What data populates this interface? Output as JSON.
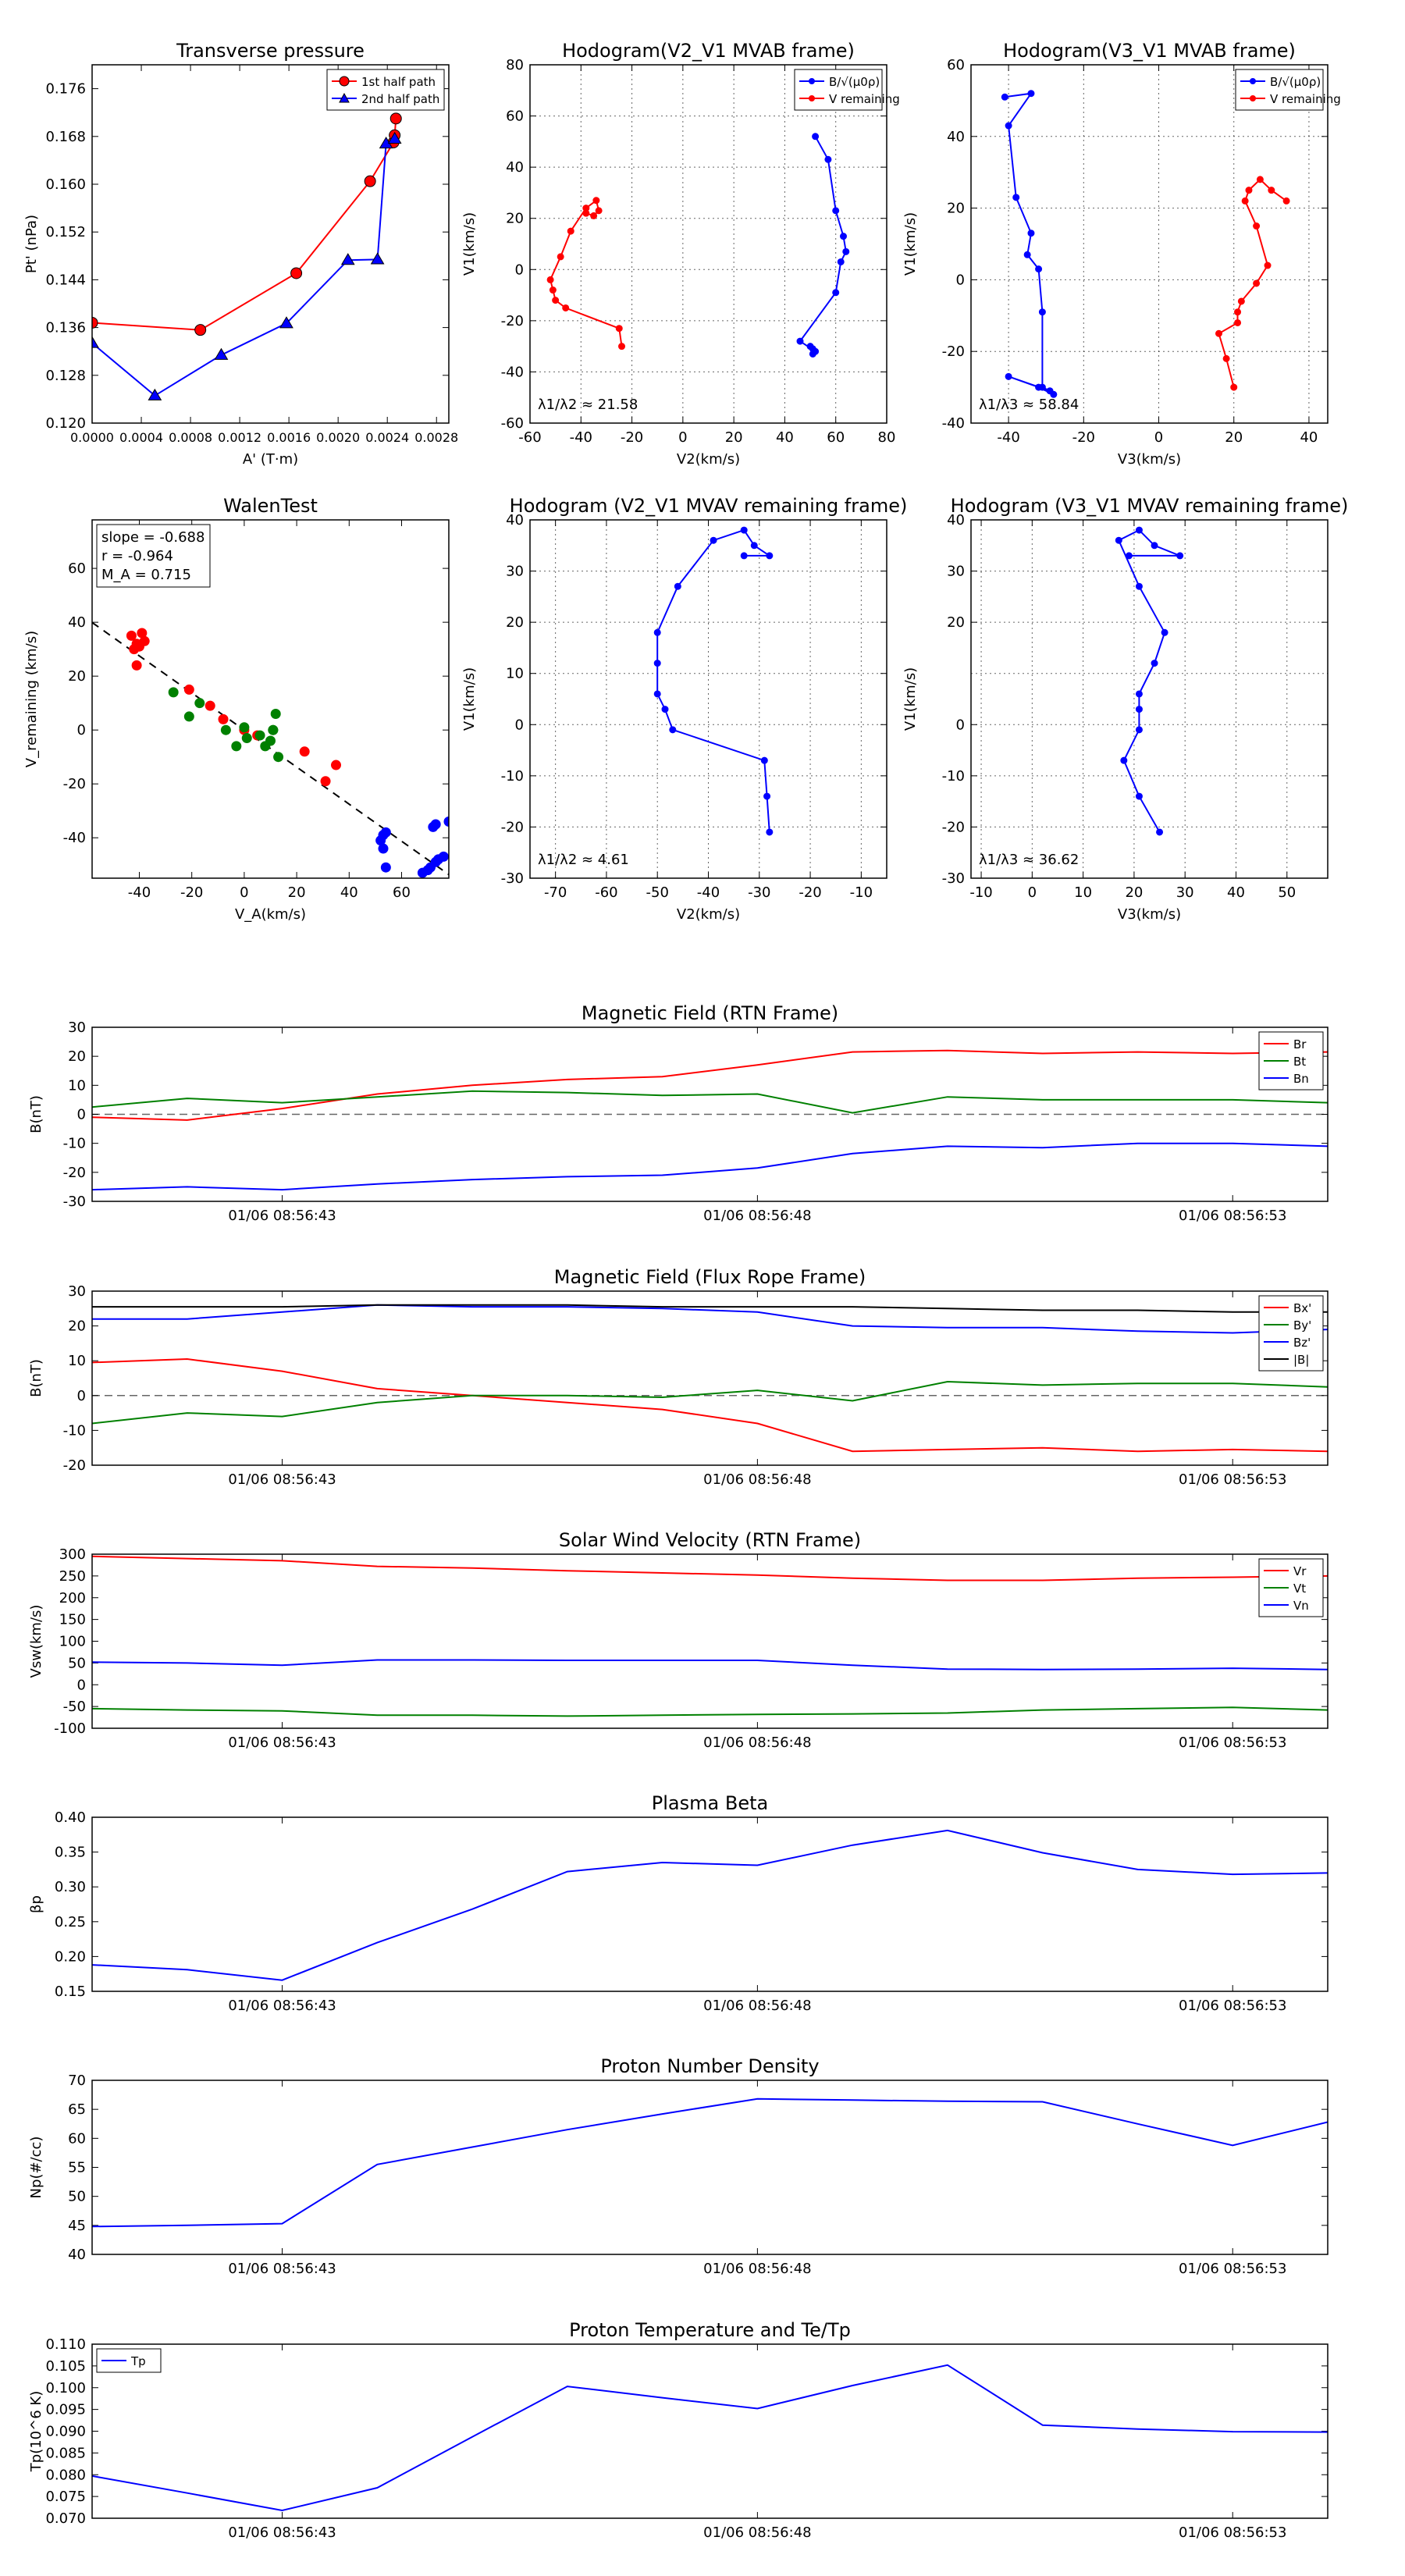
{
  "chart_data": [
    {
      "id": "tp",
      "type": "scatter",
      "title": "Transverse pressure",
      "xlabel": "A' (T·m)",
      "ylabel": "Pt' (nPa)",
      "xlim": [
        0,
        0.0029
      ],
      "ylim": [
        0.12,
        0.18
      ],
      "xticks": [
        0,
        0.0004,
        0.0008,
        0.0012,
        0.0016,
        0.002,
        0.0024,
        0.0028
      ],
      "xticklabels": [
        "0.0000",
        "0.0004",
        "0.0008",
        "0.0012",
        "0.0016",
        "0.0020",
        "0.0024",
        "0.0028"
      ],
      "yticks": [
        0.12,
        0.128,
        0.136,
        0.144,
        0.152,
        0.16,
        0.168,
        0.176
      ],
      "yticklabels": [
        "0.120",
        "0.128",
        "0.136",
        "0.144",
        "0.152",
        "0.160",
        "0.168",
        "0.176"
      ],
      "grid": false,
      "legend_position": "top-right",
      "series": [
        {
          "name": "1st half path",
          "color": "#ff0000",
          "marker": "circle",
          "x": [
            0.0,
            0.00088,
            0.00166,
            0.00226,
            0.00245,
            0.00246,
            0.00247
          ],
          "y": [
            0.1368,
            0.1356,
            0.1451,
            0.1605,
            0.167,
            0.1682,
            0.171
          ]
        },
        {
          "name": "2nd half path",
          "color": "#0000ff",
          "marker": "triangle",
          "x": [
            0.0,
            0.00051,
            0.00105,
            0.00158,
            0.00208,
            0.00232,
            0.00239,
            0.00246
          ],
          "y": [
            0.1334,
            0.1246,
            0.1314,
            0.1367,
            0.1473,
            0.1474,
            0.1668,
            0.1676
          ]
        }
      ]
    },
    {
      "id": "h1",
      "type": "line",
      "title": "Hodogram(V2_V1 MVAB frame)",
      "xlabel": "V2(km/s)",
      "ylabel": "V1(km/s)",
      "xlim": [
        -60,
        80
      ],
      "ylim": [
        -60,
        80
      ],
      "xticks": [
        -60,
        -40,
        -20,
        0,
        20,
        40,
        60,
        80
      ],
      "yticks": [
        -60,
        -40,
        -20,
        0,
        20,
        40,
        60,
        80
      ],
      "grid": true,
      "legend_position": "top-right",
      "annotation": "λ1/λ2 ≈ 21.58",
      "series": [
        {
          "name": "B/√(μ0ρ)",
          "color": "#0000ff",
          "x": [
            51,
            51,
            50,
            52,
            46,
            60,
            62,
            64,
            63,
            60,
            57,
            52
          ],
          "y": [
            -33,
            -31,
            -30,
            -32,
            -28,
            -9,
            3,
            7,
            13,
            23,
            43,
            52
          ]
        },
        {
          "name": "V remaining",
          "color": "#ff0000",
          "x": [
            -24,
            -25,
            -46,
            -50,
            -51,
            -52,
            -48,
            -44,
            -38,
            -34,
            -33,
            -35,
            -38
          ],
          "y": [
            -30,
            -23,
            -15,
            -12,
            -8,
            -4,
            5,
            15,
            24,
            27,
            23,
            21,
            22
          ]
        }
      ]
    },
    {
      "id": "h2",
      "type": "line",
      "title": "Hodogram(V3_V1 MVAB frame)",
      "xlabel": "V3(km/s)",
      "ylabel": "V1(km/s)",
      "xlim": [
        -50,
        45
      ],
      "ylim": [
        -40,
        60
      ],
      "xticks": [
        -40,
        -20,
        0,
        20,
        40
      ],
      "yticks": [
        -40,
        -20,
        0,
        20,
        40,
        60
      ],
      "grid": true,
      "legend_position": "top-right",
      "annotation": "λ1/λ3 ≈ 58.84",
      "series": [
        {
          "name": "B/√(μ0ρ)",
          "color": "#0000ff",
          "x": [
            -28,
            -32,
            -40,
            -29,
            -31,
            -31,
            -32,
            -35,
            -34,
            -38,
            -40,
            -34,
            -41
          ],
          "y": [
            -32,
            -30,
            -27,
            -31,
            -30,
            -9,
            3,
            7,
            13,
            23,
            43,
            52,
            51
          ]
        },
        {
          "name": "V remaining",
          "color": "#ff0000",
          "x": [
            20,
            18,
            16,
            21,
            21,
            22,
            26,
            29,
            26,
            23,
            24,
            27,
            30,
            34
          ],
          "y": [
            -30,
            -22,
            -15,
            -12,
            -9,
            -6,
            -1,
            4,
            15,
            22,
            25,
            28,
            25,
            22
          ]
        }
      ]
    },
    {
      "id": "walen",
      "type": "scatter",
      "title": "WalenTest",
      "xlabel": "V_A(km/s)",
      "ylabel": "V_remaining (km/s)",
      "xlim": [
        -58,
        78
      ],
      "ylim": [
        -55,
        78
      ],
      "xticks": [
        -40,
        -20,
        0,
        20,
        40,
        60
      ],
      "yticks": [
        -40,
        -20,
        0,
        20,
        40,
        60
      ],
      "grid": false,
      "fit_line": {
        "slope": -0.688,
        "intercept": 0
      },
      "stats": [
        "slope = -0.688",
        "r = -0.964",
        "M_A = 0.715"
      ],
      "series": [
        {
          "name": "red",
          "color": "#ff0000",
          "x": [
            -43,
            -41,
            -39,
            -42,
            -40,
            -38,
            -41,
            -21,
            -13,
            -8,
            0,
            5,
            23,
            31,
            35
          ],
          "y": [
            35,
            32,
            36,
            30,
            31,
            33,
            24,
            15,
            9,
            4,
            0,
            -2,
            -8,
            -19,
            -13
          ]
        },
        {
          "name": "green",
          "color": "#008000",
          "x": [
            -27,
            -21,
            -17,
            -7,
            -3,
            0,
            1,
            6,
            8,
            10,
            11,
            12,
            13,
            11
          ],
          "y": [
            14,
            5,
            10,
            0,
            -6,
            1,
            -3,
            -2,
            -6,
            -4,
            0,
            6,
            -10,
            0
          ]
        },
        {
          "name": "blue",
          "color": "#0000ff",
          "x": [
            52,
            53,
            54,
            72,
            73,
            78,
            68,
            70,
            71,
            73,
            74,
            76,
            53,
            54
          ],
          "y": [
            -41,
            -39,
            -38,
            -36,
            -35,
            -34,
            -53,
            -52,
            -51,
            -49,
            -48,
            -47,
            -44,
            -51
          ]
        }
      ]
    },
    {
      "id": "h3",
      "type": "line",
      "title": "Hodogram (V2_V1 MVAV remaining frame)",
      "xlabel": "V2(km/s)",
      "ylabel": "V1(km/s)",
      "xlim": [
        -75,
        -5
      ],
      "ylim": [
        -30,
        40
      ],
      "xticks": [
        -70,
        -60,
        -50,
        -40,
        -30,
        -20,
        -10
      ],
      "yticks": [
        -30,
        -20,
        -10,
        0,
        10,
        20,
        30,
        40
      ],
      "grid": true,
      "annotation": "λ1/λ2 ≈ 4.61",
      "series": [
        {
          "name": "path",
          "color": "#0000ff",
          "x": [
            -28,
            -28.5,
            -29,
            -47,
            -48.5,
            -50,
            -50,
            -50,
            -46,
            -39,
            -33,
            -31,
            -28,
            -33
          ],
          "y": [
            -21,
            -14,
            -7,
            -1,
            3,
            6,
            12,
            18,
            27,
            36,
            38,
            35,
            33,
            33
          ]
        }
      ]
    },
    {
      "id": "h4",
      "type": "line",
      "title": "Hodogram (V3_V1 MVAV remaining frame)",
      "xlabel": "V3(km/s)",
      "ylabel": "V1(km/s)",
      "xlim": [
        -12,
        58
      ],
      "ylim": [
        -30,
        40
      ],
      "xticks": [
        -10,
        0,
        10,
        20,
        30,
        40,
        50
      ],
      "yticks": [
        -30,
        -20,
        -10,
        0,
        20,
        30,
        40
      ],
      "yticks_all": [
        -30,
        -20,
        -10,
        0,
        10,
        20,
        30,
        40
      ],
      "grid": true,
      "annotation": "λ1/λ3 ≈ 36.62",
      "series": [
        {
          "name": "path",
          "color": "#0000ff",
          "x": [
            25,
            21,
            18,
            21,
            21,
            21,
            24,
            26,
            21,
            17,
            21,
            24,
            29,
            19
          ],
          "y": [
            -21,
            -14,
            -7,
            -1,
            3,
            6,
            12,
            18,
            27,
            36,
            38,
            35,
            33,
            33
          ]
        }
      ]
    },
    {
      "id": "ts_b_rtn",
      "type": "line",
      "title": "Magnetic Field (RTN Frame)",
      "ylabel": "B(nT)",
      "ylim": [
        -30,
        30
      ],
      "yticks": [
        -30,
        -20,
        -10,
        0,
        10,
        20,
        30
      ],
      "x": [
        0,
        1,
        2,
        3,
        4,
        5,
        6,
        7,
        8,
        9,
        10,
        11,
        12,
        13
      ],
      "xlim": [
        0,
        13
      ],
      "xticks": [
        2,
        7,
        12
      ],
      "xticklabels": [
        "01/06 08:56:43",
        "01/06 08:56:48",
        "01/06 08:56:53"
      ],
      "zero_line": true,
      "legend_position": "top-right",
      "series": [
        {
          "name": "Br",
          "color": "#ff0000",
          "values": [
            -1,
            -2,
            2,
            7,
            10,
            12,
            13,
            17,
            21.5,
            22,
            21,
            21.5,
            21,
            21.5
          ]
        },
        {
          "name": "Bt",
          "color": "#008000",
          "values": [
            2.5,
            5.5,
            4,
            6,
            8,
            7.5,
            6.5,
            7,
            0.5,
            6,
            5,
            5,
            5,
            4
          ]
        },
        {
          "name": "Bn",
          "color": "#0000ff",
          "values": [
            -26,
            -25,
            -26,
            -24,
            -22.5,
            -21.5,
            -21,
            -18.5,
            -13.5,
            -11,
            -11.5,
            -10,
            -10,
            -11
          ]
        }
      ]
    },
    {
      "id": "ts_b_fr",
      "type": "line",
      "title": "Magnetic Field (Flux Rope Frame)",
      "ylabel": "B(nT)",
      "ylim": [
        -20,
        30
      ],
      "yticks": [
        -20,
        -10,
        0,
        10,
        20,
        30
      ],
      "x": [
        0,
        1,
        2,
        3,
        4,
        5,
        6,
        7,
        8,
        9,
        10,
        11,
        12,
        13
      ],
      "xlim": [
        0,
        13
      ],
      "xticks": [
        2,
        7,
        12
      ],
      "xticklabels": [
        "01/06 08:56:43",
        "01/06 08:56:48",
        "01/06 08:56:53"
      ],
      "zero_line": true,
      "legend_position": "top-right",
      "series": [
        {
          "name": "Bx'",
          "color": "#ff0000",
          "values": [
            9.5,
            10.5,
            7,
            2,
            0,
            -2,
            -4,
            -8,
            -16,
            -15.5,
            -15,
            -16,
            -15.5,
            -16
          ]
        },
        {
          "name": "By'",
          "color": "#008000",
          "values": [
            -8,
            -5,
            -6,
            -2,
            0,
            0,
            -0.5,
            1.5,
            -1.5,
            4,
            3,
            3.5,
            3.5,
            2.5
          ]
        },
        {
          "name": "Bz'",
          "color": "#0000ff",
          "values": [
            22,
            22,
            24,
            26,
            25.5,
            25.5,
            25,
            24,
            20,
            19.5,
            19.5,
            18.5,
            18,
            19
          ]
        },
        {
          "name": "|B|",
          "color": "#000000",
          "values": [
            25.5,
            25.5,
            25.5,
            26,
            26,
            26,
            25.5,
            25.5,
            25.5,
            25,
            24.5,
            24.5,
            24,
            24
          ]
        }
      ]
    },
    {
      "id": "ts_v",
      "type": "line",
      "title": "Solar Wind Velocity (RTN Frame)",
      "ylabel": "Vsw(km/s)",
      "ylim": [
        -100,
        300
      ],
      "yticks": [
        -100,
        -50,
        0,
        50,
        100,
        150,
        200,
        250,
        300
      ],
      "x": [
        0,
        1,
        2,
        3,
        4,
        5,
        6,
        7,
        8,
        9,
        10,
        11,
        12,
        13
      ],
      "xlim": [
        0,
        13
      ],
      "xticks": [
        2,
        7,
        12
      ],
      "xticklabels": [
        "01/06 08:56:43",
        "01/06 08:56:48",
        "01/06 08:56:53"
      ],
      "legend_position": "top-right",
      "series": [
        {
          "name": "Vr",
          "color": "#ff0000",
          "values": [
            295,
            290,
            285,
            272,
            268,
            262,
            257,
            252,
            245,
            240,
            240,
            245,
            247,
            250
          ]
        },
        {
          "name": "Vt",
          "color": "#008000",
          "values": [
            -55,
            -58,
            -60,
            -70,
            -70,
            -72,
            -70,
            -68,
            -67,
            -65,
            -58,
            -55,
            -52,
            -58
          ]
        },
        {
          "name": "Vn",
          "color": "#0000ff",
          "values": [
            52,
            50,
            45,
            57,
            57,
            56,
            56,
            56,
            45,
            36,
            35,
            36,
            38,
            35
          ]
        }
      ]
    },
    {
      "id": "ts_beta",
      "type": "line",
      "title": "Plasma Beta",
      "ylabel": "βp",
      "ylim": [
        0.15,
        0.4
      ],
      "yticks": [
        0.15,
        0.2,
        0.25,
        0.3,
        0.35,
        0.4
      ],
      "yticklabels": [
        "0.15",
        "0.20",
        "0.25",
        "0.30",
        "0.35",
        "0.40"
      ],
      "x": [
        0,
        1,
        2,
        3,
        4,
        5,
        6,
        7,
        8,
        9,
        10,
        11,
        12,
        13
      ],
      "xlim": [
        0,
        13
      ],
      "xticks": [
        2,
        7,
        12
      ],
      "xticklabels": [
        "01/06 08:56:43",
        "01/06 08:56:48",
        "01/06 08:56:53"
      ],
      "series": [
        {
          "name": "beta",
          "color": "#0000ff",
          "values": [
            0.188,
            0.181,
            0.166,
            0.22,
            0.268,
            0.322,
            0.335,
            0.331,
            0.36,
            0.381,
            0.349,
            0.325,
            0.318,
            0.32
          ]
        }
      ]
    },
    {
      "id": "ts_n",
      "type": "line",
      "title": "Proton Number Density",
      "ylabel": "Np(#/cc)",
      "ylim": [
        40,
        70
      ],
      "yticks": [
        40,
        45,
        50,
        55,
        60,
        65,
        70
      ],
      "x": [
        0,
        1,
        2,
        3,
        4,
        5,
        6,
        7,
        8,
        9,
        10,
        11,
        12,
        13
      ],
      "xlim": [
        0,
        13
      ],
      "xticks": [
        2,
        7,
        12
      ],
      "xticklabels": [
        "01/06 08:56:43",
        "01/06 08:56:48",
        "01/06 08:56:53"
      ],
      "series": [
        {
          "name": "Np",
          "color": "#0000ff",
          "values": [
            44.8,
            45.0,
            45.3,
            55.5,
            58.5,
            61.5,
            64.2,
            66.8,
            66.6,
            66.4,
            66.3,
            62.5,
            58.8,
            62.8
          ]
        }
      ]
    },
    {
      "id": "ts_t",
      "type": "line",
      "title": "Proton Temperature and Te/Tp",
      "ylabel": "Tp(10^6 K)",
      "ylim": [
        0.07,
        0.11
      ],
      "yticks": [
        0.07,
        0.075,
        0.08,
        0.085,
        0.09,
        0.095,
        0.1,
        0.105,
        0.11
      ],
      "yticklabels": [
        "0.070",
        "0.075",
        "0.080",
        "0.085",
        "0.090",
        "0.095",
        "0.100",
        "0.105",
        "0.110"
      ],
      "x": [
        0,
        1,
        2,
        3,
        4,
        5,
        6,
        7,
        8,
        9,
        10,
        11,
        12,
        13
      ],
      "xlim": [
        0,
        13
      ],
      "xticks": [
        2,
        7,
        12
      ],
      "xticklabels": [
        "01/06 08:56:43",
        "01/06 08:56:48",
        "01/06 08:56:53"
      ],
      "legend_position": "top-left",
      "series": [
        {
          "name": "Tp",
          "color": "#0000ff",
          "values": [
            0.0797,
            0.0758,
            0.0718,
            0.077,
            0.0887,
            0.1003,
            0.0977,
            0.0952,
            0.1005,
            0.1052,
            0.0914,
            0.0905,
            0.0899,
            0.0898
          ]
        }
      ]
    }
  ]
}
